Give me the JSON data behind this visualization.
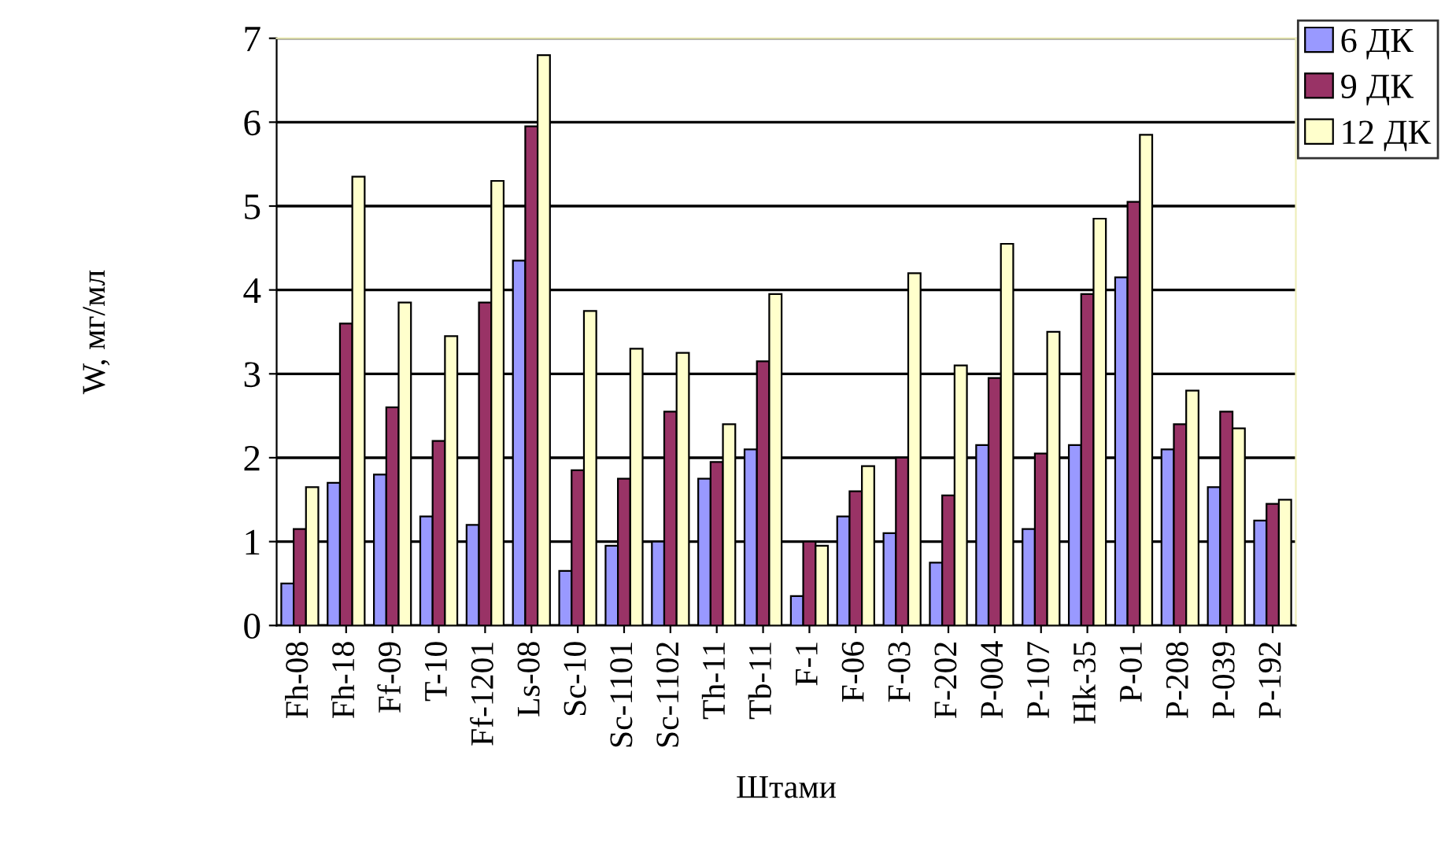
{
  "chart_data": {
    "type": "bar",
    "xlabel": "Штами",
    "ylabel": "W, мг/мл",
    "categories": [
      "Fh-08",
      "Fh-18",
      "Ff-09",
      "T-10",
      "Ff-1201",
      "Ls-08",
      "Sc-10",
      "Sc-1101",
      "Sc-1102",
      "Th-11",
      "Tb-11",
      "F-1",
      "F-06",
      "F-03",
      "F-202",
      "P-004",
      "P-107",
      "Hk-35",
      "P-01",
      "P-208",
      "P-039",
      "P-192"
    ],
    "series": [
      {
        "name": "6 ДК",
        "color": "#9999ff",
        "values": [
          0.5,
          1.7,
          1.8,
          1.3,
          1.2,
          4.35,
          0.65,
          0.95,
          1.0,
          1.75,
          2.1,
          0.35,
          1.3,
          1.1,
          0.75,
          2.15,
          1.15,
          2.15,
          4.15,
          2.1,
          1.65,
          1.25
        ]
      },
      {
        "name": "9 ДК",
        "color": "#993366",
        "values": [
          1.15,
          3.6,
          2.6,
          2.2,
          3.85,
          5.95,
          1.85,
          1.75,
          2.55,
          1.95,
          3.15,
          1.0,
          1.6,
          2.0,
          1.55,
          2.95,
          2.05,
          3.95,
          5.05,
          2.4,
          2.55,
          1.45
        ]
      },
      {
        "name": "12 ДК",
        "color": "#ffffcc",
        "values": [
          1.65,
          5.35,
          3.85,
          3.45,
          5.3,
          6.8,
          3.75,
          3.3,
          3.25,
          2.4,
          3.95,
          0.95,
          1.9,
          4.2,
          3.1,
          4.55,
          3.5,
          4.85,
          5.85,
          2.8,
          2.35,
          1.5
        ]
      }
    ],
    "ylim": [
      0,
      7
    ],
    "yticks": [
      0,
      1,
      2,
      3,
      4,
      5,
      6,
      7
    ],
    "grid": "y",
    "legend": "top right"
  }
}
